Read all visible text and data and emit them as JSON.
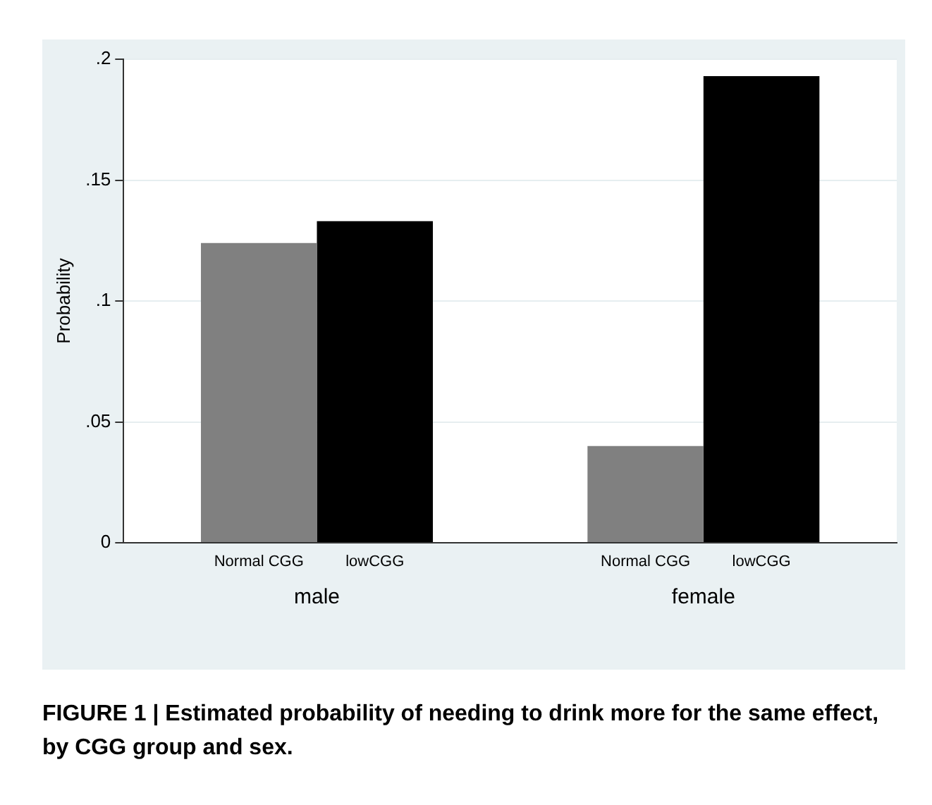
{
  "chart_data": {
    "type": "bar",
    "ylabel": "Probability",
    "categories": [
      "male",
      "female"
    ],
    "series": [
      {
        "name": "Normal CGG",
        "color": "#808080",
        "values": [
          0.124,
          0.04
        ]
      },
      {
        "name": "lowCGG",
        "color": "#000000",
        "values": [
          0.133,
          0.193
        ]
      }
    ],
    "ylim": [
      0,
      0.2
    ],
    "yticks": [
      0,
      {
        "value": 0.05,
        "label": ".05"
      },
      {
        "value": 0.1,
        "label": ".1"
      },
      {
        "value": 0.15,
        "label": ".15"
      },
      {
        "value": 0.2,
        "label": ".2"
      }
    ],
    "grid": "y",
    "legend": false,
    "annotations": [
      "FIGURE 1 | Estimated probability of needing to drink more for the same effect, by CGG group and sex."
    ]
  }
}
